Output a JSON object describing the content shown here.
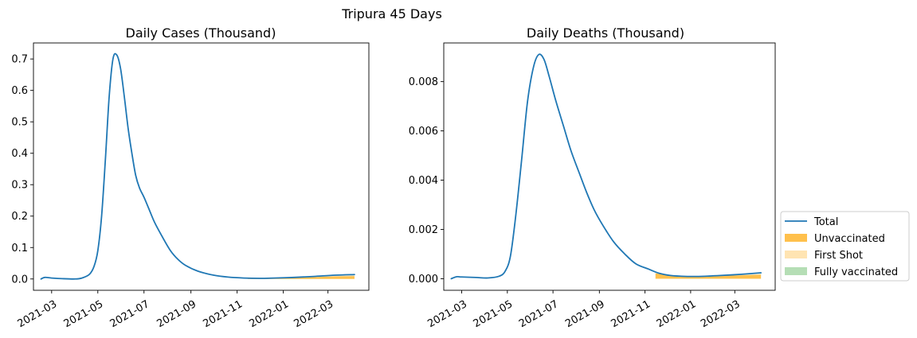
{
  "title": "Tripura 45 Days",
  "legend": {
    "placement": "lower-right-outside",
    "items": [
      {
        "label": "Total",
        "kind": "line",
        "color": "#1f77b4"
      },
      {
        "label": "Unvaccinated",
        "kind": "patch",
        "color": "#ffa500",
        "opacity": 0.7
      },
      {
        "label": "First Shot",
        "kind": "patch",
        "color": "#ffa500",
        "opacity": 0.3
      },
      {
        "label": "Fully vaccinated",
        "kind": "patch",
        "color": "#2ca02c",
        "opacity": 0.35
      }
    ]
  },
  "chart_data": [
    {
      "type": "line",
      "title": "Daily Cases (Thousand)",
      "xlabel": "",
      "ylabel": "",
      "xlim": [
        "2021-02-05",
        "2022-04-24"
      ],
      "ylim": [
        -0.036,
        0.751
      ],
      "x_ticks": [
        "2021-03-01",
        "2021-05-01",
        "2021-07-01",
        "2021-09-01",
        "2021-11-01",
        "2022-01-01",
        "2022-03-01"
      ],
      "x_tick_labels": [
        "2021-03",
        "2021-05",
        "2021-07",
        "2021-09",
        "2021-11",
        "2022-01",
        "2022-03"
      ],
      "y_ticks": [
        0.0,
        0.1,
        0.2,
        0.3,
        0.4,
        0.5,
        0.6,
        0.7
      ],
      "y_tick_labels": [
        "0.0",
        "0.1",
        "0.2",
        "0.3",
        "0.4",
        "0.5",
        "0.6",
        "0.7"
      ],
      "grid": false,
      "series": [
        {
          "name": "Total",
          "color": "#1f77b4",
          "x": [
            "2021-02-15",
            "2021-02-20",
            "2021-03-01",
            "2021-03-15",
            "2021-04-01",
            "2021-04-10",
            "2021-04-20",
            "2021-04-26",
            "2021-05-01",
            "2021-05-06",
            "2021-05-11",
            "2021-05-16",
            "2021-05-21",
            "2021-05-26",
            "2021-05-31",
            "2021-06-05",
            "2021-06-10",
            "2021-06-15",
            "2021-06-20",
            "2021-06-25",
            "2021-07-01",
            "2021-07-08",
            "2021-07-15",
            "2021-07-25",
            "2021-08-05",
            "2021-08-15",
            "2021-08-25",
            "2021-09-10",
            "2021-10-01",
            "2021-10-20",
            "2021-11-10",
            "2021-12-01",
            "2021-12-20",
            "2022-01-15",
            "2022-02-10",
            "2022-03-10",
            "2022-04-05"
          ],
          "values": [
            0.0,
            0.005,
            0.003,
            0.001,
            0.0,
            0.003,
            0.015,
            0.04,
            0.09,
            0.2,
            0.38,
            0.58,
            0.7,
            0.713,
            0.67,
            0.58,
            0.48,
            0.4,
            0.33,
            0.29,
            0.26,
            0.22,
            0.18,
            0.135,
            0.09,
            0.062,
            0.043,
            0.025,
            0.012,
            0.006,
            0.003,
            0.002,
            0.003,
            0.005,
            0.008,
            0.012,
            0.014
          ]
        }
      ],
      "areas": [
        {
          "name": "Unvaccinated",
          "color": "#ffa500",
          "opacity": 0.7,
          "x": [
            "2021-11-15",
            "2021-12-01",
            "2021-12-20",
            "2022-01-15",
            "2022-02-10",
            "2022-03-10",
            "2022-04-05"
          ],
          "values": [
            0.002,
            0.002,
            0.003,
            0.004,
            0.006,
            0.008,
            0.009
          ]
        },
        {
          "name": "First Shot",
          "color": "#ffa500",
          "opacity": 0.3,
          "x": [
            "2021-11-15",
            "2021-12-01",
            "2021-12-20",
            "2022-01-15",
            "2022-02-10",
            "2022-03-10",
            "2022-04-05"
          ],
          "values": [
            0.0,
            0.0,
            0.0,
            0.001,
            0.001,
            0.002,
            0.002
          ]
        },
        {
          "name": "Fully vaccinated",
          "color": "#2ca02c",
          "opacity": 0.35,
          "x": [
            "2021-11-15",
            "2021-12-01",
            "2021-12-20",
            "2022-01-15",
            "2022-02-10",
            "2022-03-10",
            "2022-04-05"
          ],
          "values": [
            0.0,
            0.0,
            0.0,
            0.0,
            0.0,
            0.0,
            0.0
          ]
        }
      ]
    },
    {
      "type": "line",
      "title": "Daily Deaths (Thousand)",
      "xlabel": "",
      "ylabel": "",
      "xlim": [
        "2021-02-05",
        "2022-04-24"
      ],
      "ylim": [
        -0.00047,
        0.00957
      ],
      "x_ticks": [
        "2021-03-01",
        "2021-05-01",
        "2021-07-01",
        "2021-09-01",
        "2021-11-01",
        "2022-01-01",
        "2022-03-01"
      ],
      "x_tick_labels": [
        "2021-03",
        "2021-05",
        "2021-07",
        "2021-09",
        "2021-11",
        "2022-01",
        "2022-03"
      ],
      "y_ticks": [
        0.0,
        0.002,
        0.004,
        0.006,
        0.008
      ],
      "y_tick_labels": [
        "0.000",
        "0.002",
        "0.004",
        "0.006",
        "0.008"
      ],
      "grid": false,
      "series": [
        {
          "name": "Total",
          "color": "#1f77b4",
          "x": [
            "2021-02-15",
            "2021-02-22",
            "2021-03-01",
            "2021-03-20",
            "2021-04-05",
            "2021-04-20",
            "2021-04-28",
            "2021-05-05",
            "2021-05-12",
            "2021-05-20",
            "2021-05-28",
            "2021-06-05",
            "2021-06-12",
            "2021-06-19",
            "2021-06-26",
            "2021-07-05",
            "2021-07-15",
            "2021-07-25",
            "2021-08-05",
            "2021-08-15",
            "2021-08-25",
            "2021-09-05",
            "2021-09-20",
            "2021-10-05",
            "2021-10-20",
            "2021-11-05",
            "2021-11-20",
            "2021-12-05",
            "2021-12-20",
            "2022-01-05",
            "2022-01-20",
            "2022-02-10",
            "2022-03-10",
            "2022-04-05"
          ],
          "values": [
            0.0,
            8e-05,
            7e-05,
            5e-05,
            3e-05,
            0.0001,
            0.0003,
            0.0009,
            0.0025,
            0.0048,
            0.0072,
            0.0086,
            0.0091,
            0.0089,
            0.0082,
            0.0072,
            0.0062,
            0.0052,
            0.0043,
            0.0035,
            0.0028,
            0.0022,
            0.0015,
            0.001,
            0.0006,
            0.0004,
            0.00022,
            0.00013,
            0.0001,
            9e-05,
            0.0001,
            0.00013,
            0.00018,
            0.00024
          ]
        }
      ],
      "areas": [
        {
          "name": "Unvaccinated",
          "color": "#ffa500",
          "opacity": 0.7,
          "x": [
            "2021-11-15",
            "2021-12-05",
            "2021-12-20",
            "2022-01-05",
            "2022-01-20",
            "2022-02-10",
            "2022-03-10",
            "2022-04-05"
          ],
          "values": [
            0.00022,
            0.00013,
            0.0001,
            9e-05,
            0.0001,
            0.00012,
            0.00014,
            0.00016
          ]
        },
        {
          "name": "First Shot",
          "color": "#ffa500",
          "opacity": 0.3,
          "x": [
            "2021-11-15",
            "2021-12-05",
            "2021-12-20",
            "2022-01-05",
            "2022-01-20",
            "2022-02-10",
            "2022-03-10",
            "2022-04-05"
          ],
          "values": [
            0.0,
            0.0,
            0.0,
            0.0,
            0.0,
            1e-05,
            2e-05,
            3e-05
          ]
        },
        {
          "name": "Fully vaccinated",
          "color": "#2ca02c",
          "opacity": 0.35,
          "x": [
            "2021-11-15",
            "2021-12-05",
            "2021-12-20",
            "2022-01-05",
            "2022-01-20",
            "2022-02-10",
            "2022-03-10",
            "2022-04-05"
          ],
          "values": [
            0.0,
            0.0,
            0.0,
            0.0,
            0.0,
            0.0,
            0.0,
            0.0
          ]
        }
      ]
    }
  ]
}
